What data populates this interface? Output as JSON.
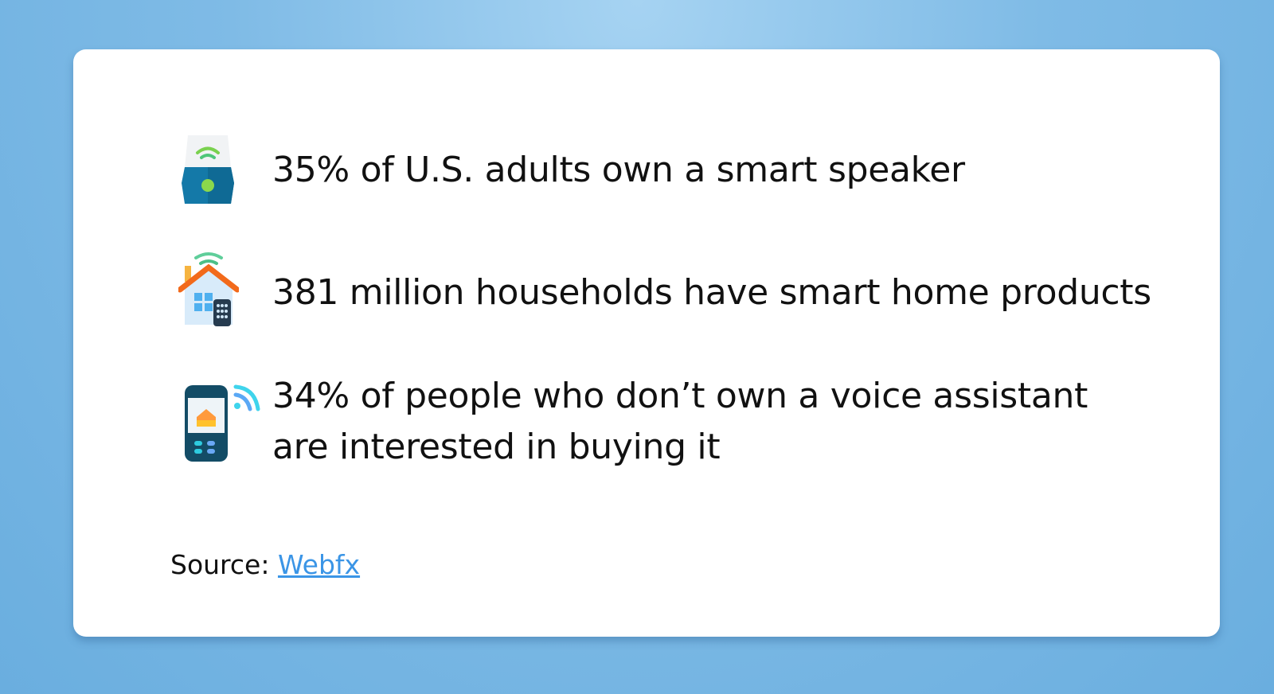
{
  "stats": [
    {
      "icon": "smart-speaker-icon",
      "text": "35% of U.S. adults own a smart speaker"
    },
    {
      "icon": "smart-home-icon",
      "text": "381 million households have smart home products"
    },
    {
      "icon": "smart-remote-icon",
      "lines": [
        "34% of people who don’t own a voice assistant",
        "are interested in buying it"
      ]
    }
  ],
  "source": {
    "label": "Source:",
    "link_text": "Webfx",
    "link_color": "#3b95e6"
  }
}
